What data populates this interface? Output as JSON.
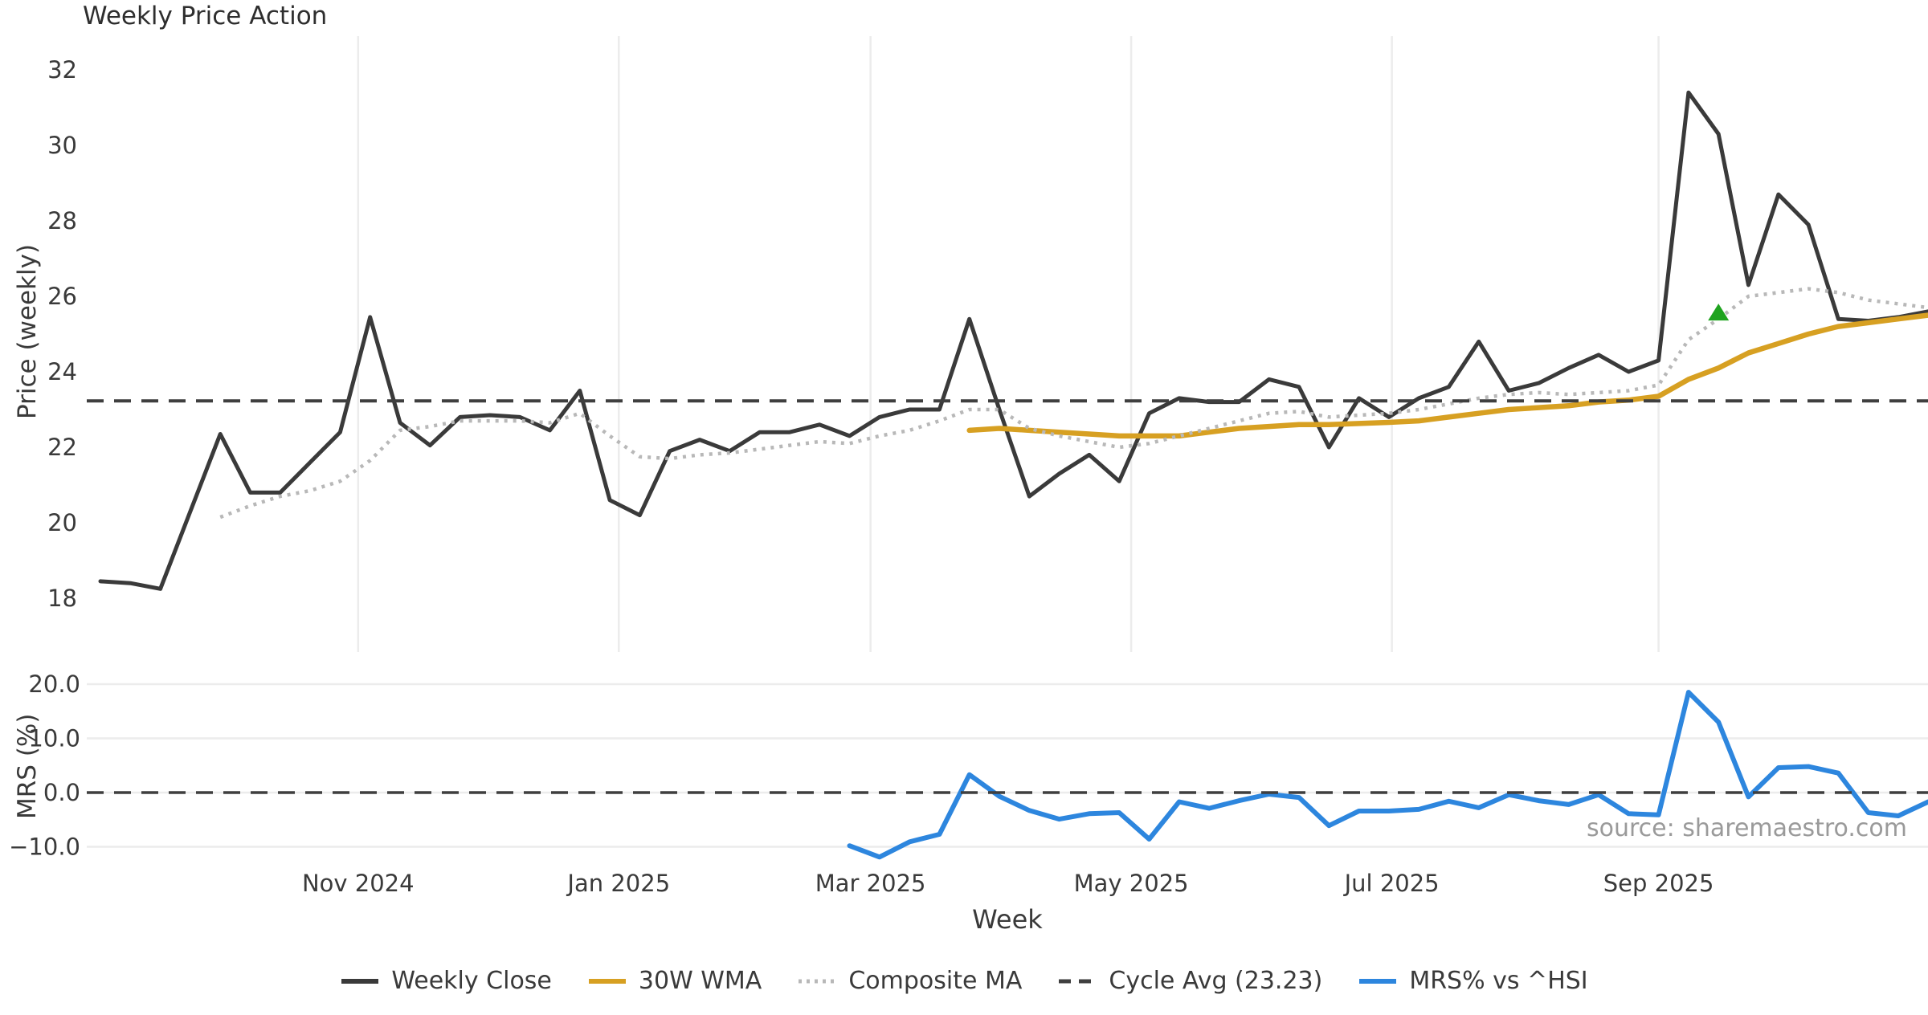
{
  "title": "Weekly Price Action",
  "source": "source: sharemaestro.com",
  "colors": {
    "weekly_close": "#3a3a3a",
    "wma_30w": "#d7a022",
    "composite_ma": "#b8b8b8",
    "cycle_avg": "#3f3f3f",
    "mrs": "#2d86de",
    "marker_green": "#1fa31f",
    "gridline": "#ececec",
    "source_text": "#9a9a9a"
  },
  "x_axis": {
    "label": "Week",
    "ticks": [
      {
        "label": "Nov 2024",
        "i": 8.6
      },
      {
        "label": "Jan 2025",
        "i": 17.3
      },
      {
        "label": "Mar 2025",
        "i": 25.7
      },
      {
        "label": "May 2025",
        "i": 34.4
      },
      {
        "label": "Jul 2025",
        "i": 43.1
      },
      {
        "label": "Sep 2025",
        "i": 52.0
      }
    ]
  },
  "legend": {
    "items": [
      {
        "label": "Weekly Close",
        "color": "#3a3a3a",
        "style": "solid"
      },
      {
        "label": "30W WMA",
        "color": "#d7a022",
        "style": "solid"
      },
      {
        "label": "Composite MA",
        "color": "#b8b8b8",
        "style": "dotted"
      },
      {
        "label": "Cycle Avg (23.23)",
        "color": "#3f3f3f",
        "style": "dashed"
      },
      {
        "label": "MRS% vs ^HSI",
        "color": "#2d86de",
        "style": "solid"
      }
    ]
  },
  "chart_data": [
    {
      "type": "line",
      "panel": "price",
      "title": "Weekly Price Action",
      "ylabel": "Price (weekly)",
      "ylim": [
        17.6,
        32.9
      ],
      "grid": "vertical-month-ticks",
      "y_ticks": [
        {
          "label": "18",
          "v": 18
        },
        {
          "label": "20",
          "v": 20
        },
        {
          "label": "22",
          "v": 22
        },
        {
          "label": "24",
          "v": 24
        },
        {
          "label": "26",
          "v": 26
        },
        {
          "label": "28",
          "v": 28
        },
        {
          "label": "30",
          "v": 30
        },
        {
          "label": "32",
          "v": 32
        }
      ],
      "cycle_avg": 23.23,
      "series": [
        {
          "name": "Weekly Close",
          "color": "#3a3a3a",
          "style": "solid",
          "width": 5,
          "values": [
            18.45,
            18.4,
            18.25,
            20.3,
            22.35,
            20.8,
            20.8,
            21.6,
            22.4,
            25.45,
            22.65,
            22.05,
            22.8,
            22.85,
            22.8,
            22.45,
            23.5,
            20.6,
            20.2,
            21.9,
            22.2,
            21.9,
            22.4,
            22.4,
            22.6,
            22.3,
            22.8,
            23.0,
            23.0,
            25.4,
            23.0,
            20.7,
            21.3,
            21.8,
            21.1,
            22.9,
            23.3,
            23.2,
            23.2,
            23.8,
            23.6,
            22.0,
            23.3,
            22.8,
            23.3,
            23.6,
            24.8,
            23.5,
            23.7,
            24.1,
            24.45,
            24.0,
            24.3,
            31.4,
            30.3,
            26.3,
            28.7,
            27.9,
            25.4,
            25.35,
            25.45,
            25.6
          ]
        },
        {
          "name": "30W WMA",
          "color": "#d7a022",
          "style": "solid",
          "width": 6.5,
          "values": [
            null,
            null,
            null,
            null,
            null,
            null,
            null,
            null,
            null,
            null,
            null,
            null,
            null,
            null,
            null,
            null,
            null,
            null,
            null,
            null,
            null,
            null,
            null,
            null,
            null,
            null,
            null,
            null,
            null,
            22.45,
            22.5,
            22.45,
            22.4,
            22.35,
            22.3,
            22.3,
            22.3,
            22.4,
            22.5,
            22.55,
            22.6,
            22.6,
            22.63,
            22.66,
            22.7,
            22.8,
            22.9,
            23.0,
            23.05,
            23.1,
            23.2,
            23.25,
            23.35,
            23.8,
            24.1,
            24.5,
            24.75,
            25.0,
            25.2,
            25.3,
            25.4,
            25.5
          ]
        },
        {
          "name": "Composite MA",
          "color": "#b8b8b8",
          "style": "dotted",
          "width": 4.5,
          "values": [
            null,
            null,
            null,
            null,
            20.15,
            20.45,
            20.7,
            20.85,
            21.1,
            21.65,
            22.45,
            22.55,
            22.7,
            22.7,
            22.7,
            22.65,
            22.9,
            22.3,
            21.75,
            21.7,
            21.8,
            21.85,
            21.95,
            22.05,
            22.15,
            22.1,
            22.3,
            22.45,
            22.7,
            23.0,
            23.0,
            22.5,
            22.3,
            22.15,
            22.0,
            22.1,
            22.3,
            22.5,
            22.7,
            22.9,
            22.95,
            22.8,
            22.85,
            22.9,
            23.0,
            23.15,
            23.3,
            23.4,
            23.45,
            23.4,
            23.45,
            23.5,
            23.65,
            24.85,
            25.4,
            26.0,
            26.1,
            26.2,
            26.1,
            25.9,
            25.8,
            25.7
          ]
        },
        {
          "name": "Cycle Avg (23.23)",
          "color": "#3f3f3f",
          "style": "dashed",
          "width": 4,
          "hline": 23.23
        }
      ],
      "marker": {
        "shape": "triangle-up",
        "color": "#1fa31f",
        "week_index": 54,
        "value": 25.55
      }
    },
    {
      "type": "line",
      "panel": "mrs",
      "ylabel": "MRS (%)",
      "ylim": [
        -12.6,
        21.3
      ],
      "grid": "horizontal-ticks",
      "y_ticks": [
        {
          "label": "−10.0",
          "v": -10
        },
        {
          "label": "0.0",
          "v": 0
        },
        {
          "label": "10.0",
          "v": 10
        },
        {
          "label": "20.0",
          "v": 20
        }
      ],
      "series": [
        {
          "name": "MRS% vs ^HSI",
          "color": "#2d86de",
          "style": "solid",
          "width": 6,
          "values": [
            null,
            null,
            null,
            null,
            null,
            null,
            null,
            null,
            null,
            null,
            null,
            null,
            null,
            null,
            null,
            null,
            null,
            null,
            null,
            null,
            null,
            null,
            null,
            null,
            null,
            -9.8,
            -11.9,
            -9.1,
            -7.7,
            3.3,
            -0.7,
            -3.3,
            -4.9,
            -3.9,
            -3.7,
            -8.6,
            -1.7,
            -2.9,
            -1.5,
            -0.3,
            -0.9,
            -6.1,
            -3.4,
            -3.4,
            -3.1,
            -1.6,
            -2.8,
            -0.4,
            -1.5,
            -2.2,
            -0.4,
            -3.9,
            -4.1,
            18.5,
            13.0,
            -0.8,
            4.6,
            4.8,
            3.6,
            -3.7,
            -4.3,
            -1.7
          ]
        },
        {
          "name": "Zero line",
          "color": "#3f3f3f",
          "style": "dashed",
          "width": 3.5,
          "hline": 0
        }
      ]
    }
  ]
}
